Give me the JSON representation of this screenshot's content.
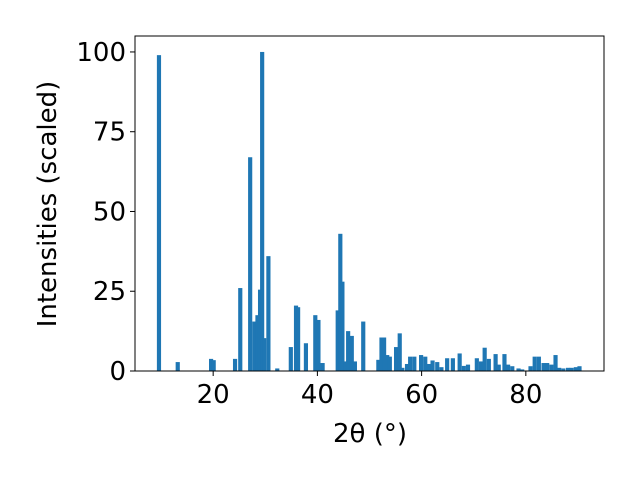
{
  "chart_data": {
    "type": "bar",
    "xlabel": "2θ (°)",
    "ylabel": "Intensities (scaled)",
    "xlim": [
      5,
      95
    ],
    "ylim": [
      0,
      105
    ],
    "x_ticks": [
      20,
      40,
      60,
      80
    ],
    "y_ticks": [
      0,
      25,
      50,
      75,
      100
    ],
    "grid": false,
    "bar_color": "#1f77b4",
    "bar_width": 0.8,
    "x": [
      9.6,
      13.2,
      19.6,
      20.1,
      24.2,
      25.2,
      27.1,
      27.9,
      28.5,
      29.0,
      29.4,
      29.8,
      30.6,
      32.3,
      34.9,
      35.9,
      36.3,
      37.8,
      39.6,
      40.2,
      41.0,
      43.9,
      44.4,
      44.8,
      45.4,
      45.9,
      46.6,
      47.2,
      48.8,
      51.7,
      52.3,
      52.8,
      53.4,
      53.9,
      55.1,
      55.8,
      56.3,
      57.2,
      57.8,
      58.6,
      59.9,
      60.7,
      61.4,
      62.1,
      63.0,
      63.8,
      64.9,
      66.0,
      67.3,
      68.1,
      68.9,
      70.6,
      71.4,
      72.1,
      72.9,
      74.2,
      74.8,
      75.9,
      76.6,
      77.4,
      78.6,
      79.3,
      80.9,
      81.7,
      82.5,
      83.4,
      84.1,
      84.9,
      85.7,
      86.4,
      87.2,
      88.1,
      88.8,
      89.6,
      90.3
    ],
    "values": [
      99,
      2.8,
      3.8,
      3.4,
      3.8,
      26,
      67,
      15.5,
      17.5,
      25.5,
      100,
      10.3,
      36,
      0.8,
      7.5,
      20.5,
      20,
      8.7,
      17.5,
      16,
      2.5,
      19,
      43,
      28,
      3,
      12.5,
      11,
      3,
      15.5,
      3.5,
      10.5,
      10.5,
      5,
      4.5,
      7.5,
      11.8,
      1,
      2.2,
      4.5,
      4.5,
      5,
      4.5,
      2.2,
      3.3,
      2.8,
      1.2,
      4,
      4,
      5.5,
      1.6,
      2,
      4,
      3,
      7.3,
      3.8,
      5.3,
      2,
      5.3,
      2,
      1.5,
      0.8,
      0.5,
      1.5,
      4.5,
      4.5,
      2.5,
      2.5,
      2,
      5,
      1,
      0.8,
      1,
      1,
      1.2,
      1.5
    ]
  }
}
